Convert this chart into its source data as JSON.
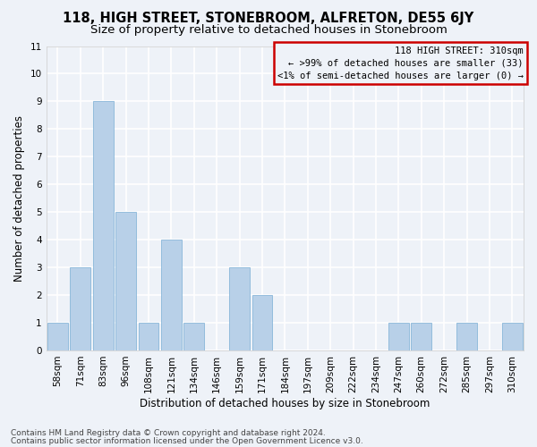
{
  "title": "118, HIGH STREET, STONEBROOM, ALFRETON, DE55 6JY",
  "subtitle": "Size of property relative to detached houses in Stonebroom",
  "xlabel": "Distribution of detached houses by size in Stonebroom",
  "ylabel": "Number of detached properties",
  "categories": [
    "58sqm",
    "71sqm",
    "83sqm",
    "96sqm",
    "108sqm",
    "121sqm",
    "134sqm",
    "146sqm",
    "159sqm",
    "171sqm",
    "184sqm",
    "197sqm",
    "209sqm",
    "222sqm",
    "234sqm",
    "247sqm",
    "260sqm",
    "272sqm",
    "285sqm",
    "297sqm",
    "310sqm"
  ],
  "values": [
    1,
    3,
    9,
    5,
    1,
    4,
    1,
    0,
    3,
    2,
    0,
    0,
    0,
    0,
    0,
    1,
    1,
    0,
    1,
    0,
    1
  ],
  "bar_color": "#b8d0e8",
  "bar_edgecolor": "#7aaed4",
  "annotation_box_text": "118 HIGH STREET: 310sqm\n← >99% of detached houses are smaller (33)\n<1% of semi-detached houses are larger (0) →",
  "annotation_box_color": "#cc0000",
  "ylim": [
    0,
    11
  ],
  "yticks": [
    0,
    1,
    2,
    3,
    4,
    5,
    6,
    7,
    8,
    9,
    10,
    11
  ],
  "footnote1": "Contains HM Land Registry data © Crown copyright and database right 2024.",
  "footnote2": "Contains public sector information licensed under the Open Government Licence v3.0.",
  "background_color": "#eef2f8",
  "grid_color": "#ffffff",
  "title_fontsize": 10.5,
  "subtitle_fontsize": 9.5,
  "axis_label_fontsize": 8.5,
  "tick_fontsize": 7.5,
  "annotation_fontsize": 7.5,
  "footnote_fontsize": 6.5
}
